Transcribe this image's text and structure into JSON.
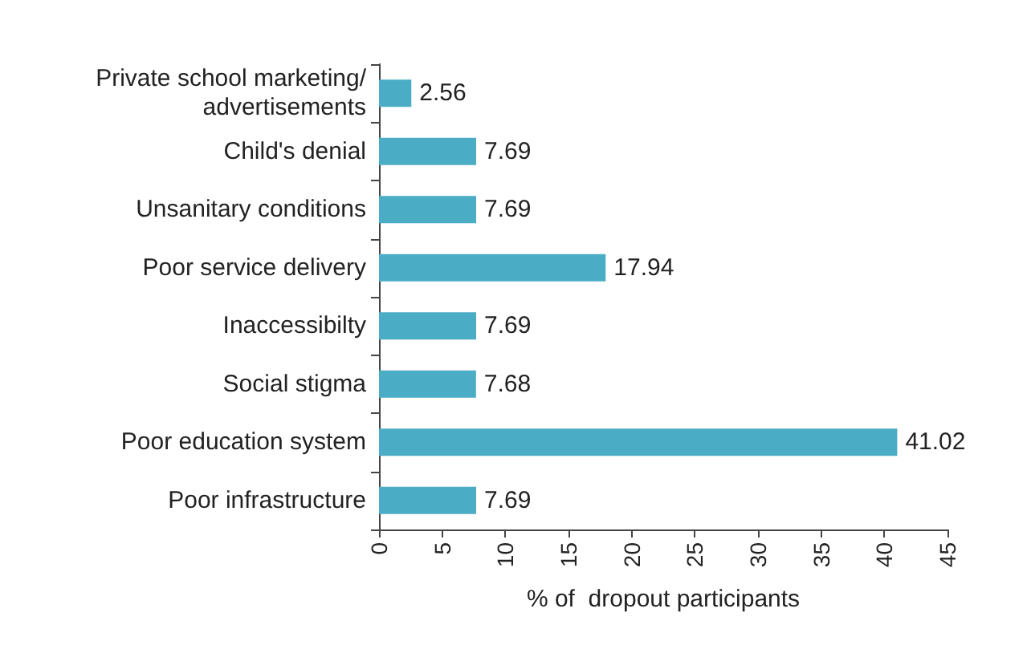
{
  "chart_data": {
    "type": "bar",
    "orientation": "horizontal",
    "categories": [
      "Private school marketing/advertisements",
      "Child's denial",
      "Unsanitary conditions",
      "Poor service delivery",
      "Inaccessibilty",
      "Social stigma",
      "Poor education system",
      "Poor infrastructure"
    ],
    "values": [
      2.56,
      7.69,
      7.69,
      17.94,
      7.69,
      7.68,
      41.02,
      7.69
    ],
    "color": "#4bacc6",
    "xlabel": "% of  dropout participants",
    "xlim": [
      0,
      45
    ],
    "xticks": [
      0,
      5,
      10,
      15,
      20,
      25,
      30,
      35,
      40,
      45
    ],
    "data_labels": true,
    "grid": false
  }
}
